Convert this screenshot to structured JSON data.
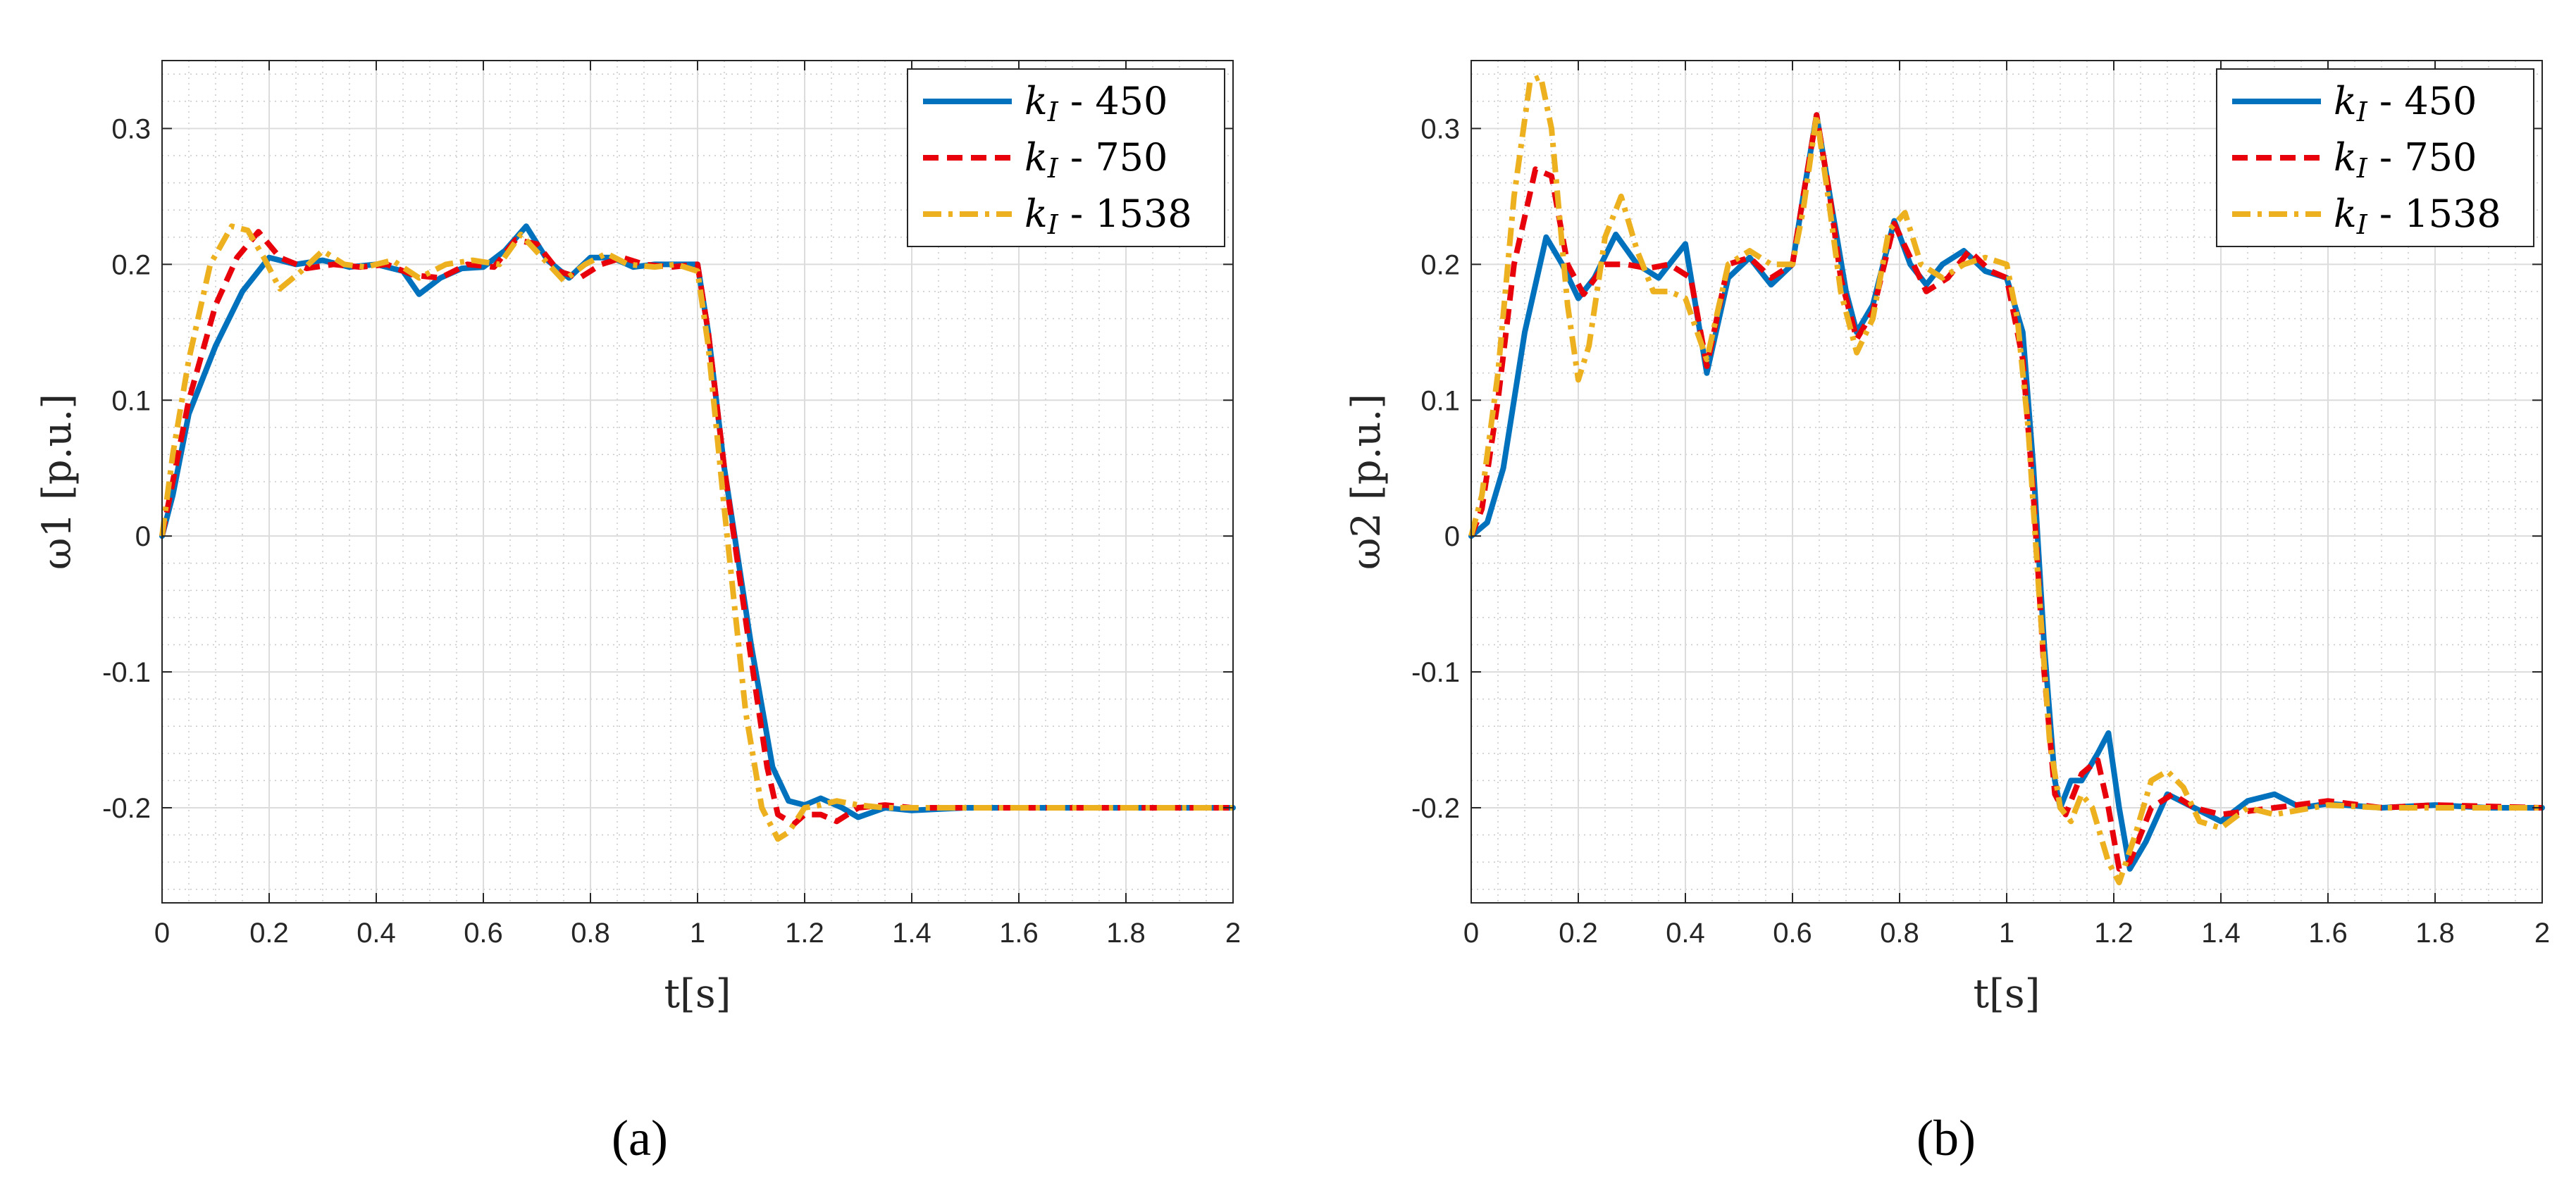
{
  "chart_data": [
    {
      "type": "line",
      "panel_label": "(a)",
      "xlabel": "t[s]",
      "ylabel": "ω1 [p.u.]",
      "xlim": [
        0,
        2
      ],
      "ylim": [
        -0.27,
        0.35
      ],
      "xticks": [
        "0",
        "0.2",
        "0.4",
        "0.6",
        "0.8",
        "1",
        "1.2",
        "1.4",
        "1.6",
        "1.8",
        "2"
      ],
      "yticks": [
        "-0.2",
        "-0.1",
        "0",
        "0.1",
        "0.2",
        "0.3"
      ],
      "grid": true,
      "legend_position": "top-right",
      "series": [
        {
          "name": "k_I - 450",
          "color": "#0072BD",
          "style": "solid",
          "x": [
            0,
            0.02,
            0.05,
            0.1,
            0.15,
            0.2,
            0.25,
            0.3,
            0.35,
            0.4,
            0.45,
            0.48,
            0.52,
            0.56,
            0.6,
            0.64,
            0.68,
            0.72,
            0.76,
            0.8,
            0.84,
            0.88,
            0.92,
            0.96,
            1.0,
            1.02,
            1.05,
            1.1,
            1.14,
            1.17,
            1.2,
            1.23,
            1.27,
            1.3,
            1.35,
            1.4,
            1.5,
            1.6,
            1.8,
            2.0
          ],
          "y": [
            0,
            0.03,
            0.09,
            0.14,
            0.18,
            0.205,
            0.2,
            0.203,
            0.198,
            0.2,
            0.195,
            0.178,
            0.19,
            0.197,
            0.198,
            0.21,
            0.228,
            0.203,
            0.19,
            0.205,
            0.205,
            0.198,
            0.2,
            0.2,
            0.2,
            0.15,
            0.05,
            -0.08,
            -0.17,
            -0.195,
            -0.198,
            -0.193,
            -0.2,
            -0.207,
            -0.2,
            -0.202,
            -0.2,
            -0.2,
            -0.2,
            -0.2
          ]
        },
        {
          "name": "k_I - 750",
          "color": "#E8000B",
          "style": "dashed",
          "x": [
            0,
            0.02,
            0.05,
            0.1,
            0.14,
            0.18,
            0.22,
            0.27,
            0.32,
            0.37,
            0.42,
            0.47,
            0.52,
            0.57,
            0.62,
            0.66,
            0.7,
            0.74,
            0.78,
            0.82,
            0.86,
            0.9,
            0.95,
            1.0,
            1.02,
            1.05,
            1.1,
            1.13,
            1.15,
            1.18,
            1.2,
            1.23,
            1.26,
            1.3,
            1.35,
            1.4,
            1.5,
            1.6,
            1.8,
            2.0
          ],
          "y": [
            0,
            0.04,
            0.1,
            0.17,
            0.205,
            0.224,
            0.205,
            0.197,
            0.2,
            0.198,
            0.2,
            0.192,
            0.19,
            0.2,
            0.198,
            0.218,
            0.215,
            0.195,
            0.19,
            0.2,
            0.205,
            0.2,
            0.198,
            0.2,
            0.15,
            0.05,
            -0.09,
            -0.17,
            -0.205,
            -0.212,
            -0.205,
            -0.205,
            -0.21,
            -0.2,
            -0.198,
            -0.2,
            -0.2,
            -0.2,
            -0.2,
            -0.2
          ]
        },
        {
          "name": "k_I - 1538",
          "color": "#EDB120",
          "style": "dashdot",
          "x": [
            0,
            0.02,
            0.05,
            0.09,
            0.13,
            0.16,
            0.19,
            0.22,
            0.26,
            0.3,
            0.34,
            0.38,
            0.43,
            0.48,
            0.53,
            0.58,
            0.63,
            0.67,
            0.71,
            0.75,
            0.79,
            0.83,
            0.87,
            0.92,
            0.96,
            1.0,
            1.02,
            1.05,
            1.09,
            1.12,
            1.15,
            1.17,
            1.2,
            1.23,
            1.26,
            1.3,
            1.35,
            1.4,
            1.5,
            1.6,
            1.8,
            2.0
          ],
          "y": [
            0,
            0.06,
            0.13,
            0.2,
            0.228,
            0.225,
            0.205,
            0.182,
            0.195,
            0.21,
            0.2,
            0.198,
            0.203,
            0.19,
            0.2,
            0.203,
            0.2,
            0.222,
            0.205,
            0.188,
            0.2,
            0.208,
            0.2,
            0.198,
            0.2,
            0.195,
            0.14,
            0.02,
            -0.13,
            -0.2,
            -0.223,
            -0.218,
            -0.2,
            -0.198,
            -0.195,
            -0.198,
            -0.2,
            -0.2,
            -0.2,
            -0.2,
            -0.2,
            -0.2
          ]
        }
      ]
    },
    {
      "type": "line",
      "panel_label": "(b)",
      "xlabel": "t[s]",
      "ylabel": "ω2 [p.u.]",
      "xlim": [
        0,
        2
      ],
      "ylim": [
        -0.27,
        0.35
      ],
      "xticks": [
        "0",
        "0.2",
        "0.4",
        "0.6",
        "0.8",
        "1",
        "1.2",
        "1.4",
        "1.6",
        "1.8",
        "2"
      ],
      "yticks": [
        "-0.2",
        "-0.1",
        "0",
        "0.1",
        "0.2",
        "0.3"
      ],
      "grid": true,
      "legend_position": "top-right",
      "series": [
        {
          "name": "k_I - 450",
          "color": "#0072BD",
          "style": "solid",
          "x": [
            0,
            0.03,
            0.06,
            0.1,
            0.14,
            0.17,
            0.2,
            0.23,
            0.27,
            0.31,
            0.35,
            0.4,
            0.44,
            0.48,
            0.52,
            0.56,
            0.6,
            0.62,
            0.645,
            0.67,
            0.7,
            0.72,
            0.75,
            0.79,
            0.82,
            0.85,
            0.88,
            0.92,
            0.96,
            1.0,
            1.03,
            1.05,
            1.07,
            1.09,
            1.1,
            1.12,
            1.14,
            1.17,
            1.19,
            1.21,
            1.23,
            1.26,
            1.3,
            1.35,
            1.4,
            1.45,
            1.5,
            1.55,
            1.6,
            1.7,
            1.8,
            1.9,
            2.0
          ],
          "y": [
            0,
            0.01,
            0.05,
            0.15,
            0.22,
            0.2,
            0.175,
            0.19,
            0.222,
            0.2,
            0.19,
            0.215,
            0.12,
            0.19,
            0.205,
            0.185,
            0.2,
            0.25,
            0.31,
            0.25,
            0.18,
            0.15,
            0.17,
            0.232,
            0.2,
            0.185,
            0.2,
            0.21,
            0.195,
            0.19,
            0.15,
            0.05,
            -0.08,
            -0.18,
            -0.2,
            -0.18,
            -0.18,
            -0.16,
            -0.145,
            -0.2,
            -0.245,
            -0.225,
            -0.19,
            -0.2,
            -0.21,
            -0.195,
            -0.19,
            -0.2,
            -0.197,
            -0.2,
            -0.198,
            -0.2,
            -0.2
          ]
        },
        {
          "name": "k_I - 750",
          "color": "#E8000B",
          "style": "dashed",
          "x": [
            0,
            0.02,
            0.05,
            0.08,
            0.12,
            0.15,
            0.18,
            0.21,
            0.25,
            0.29,
            0.33,
            0.37,
            0.41,
            0.44,
            0.48,
            0.52,
            0.56,
            0.6,
            0.62,
            0.645,
            0.67,
            0.69,
            0.72,
            0.75,
            0.79,
            0.82,
            0.85,
            0.89,
            0.93,
            0.97,
            1.0,
            1.03,
            1.05,
            1.07,
            1.09,
            1.11,
            1.14,
            1.17,
            1.19,
            1.21,
            1.23,
            1.27,
            1.31,
            1.35,
            1.4,
            1.5,
            1.6,
            1.7,
            1.8,
            2.0
          ],
          "y": [
            0,
            0.02,
            0.1,
            0.2,
            0.27,
            0.265,
            0.2,
            0.178,
            0.2,
            0.2,
            0.197,
            0.2,
            0.19,
            0.125,
            0.2,
            0.205,
            0.19,
            0.2,
            0.25,
            0.31,
            0.25,
            0.19,
            0.145,
            0.165,
            0.23,
            0.205,
            0.18,
            0.19,
            0.21,
            0.195,
            0.19,
            0.13,
            0.03,
            -0.1,
            -0.19,
            -0.205,
            -0.175,
            -0.165,
            -0.2,
            -0.245,
            -0.24,
            -0.2,
            -0.19,
            -0.2,
            -0.205,
            -0.2,
            -0.195,
            -0.2,
            -0.198,
            -0.2
          ]
        },
        {
          "name": "k_I - 1538",
          "color": "#EDB120",
          "style": "dashdot",
          "x": [
            0,
            0.02,
            0.05,
            0.08,
            0.11,
            0.13,
            0.15,
            0.18,
            0.2,
            0.22,
            0.25,
            0.28,
            0.31,
            0.34,
            0.37,
            0.4,
            0.44,
            0.48,
            0.52,
            0.56,
            0.6,
            0.62,
            0.645,
            0.67,
            0.69,
            0.72,
            0.75,
            0.78,
            0.81,
            0.84,
            0.88,
            0.92,
            0.96,
            1.0,
            1.02,
            1.04,
            1.06,
            1.08,
            1.1,
            1.12,
            1.14,
            1.16,
            1.19,
            1.21,
            1.24,
            1.27,
            1.3,
            1.33,
            1.36,
            1.4,
            1.45,
            1.5,
            1.6,
            1.7,
            1.8,
            1.9,
            2.0
          ],
          "y": [
            0,
            0.03,
            0.12,
            0.25,
            0.335,
            0.338,
            0.3,
            0.17,
            0.115,
            0.14,
            0.22,
            0.25,
            0.21,
            0.18,
            0.18,
            0.175,
            0.13,
            0.2,
            0.21,
            0.2,
            0.2,
            0.24,
            0.31,
            0.24,
            0.18,
            0.135,
            0.16,
            0.225,
            0.238,
            0.2,
            0.19,
            0.2,
            0.205,
            0.2,
            0.16,
            0.08,
            -0.04,
            -0.15,
            -0.2,
            -0.21,
            -0.19,
            -0.2,
            -0.24,
            -0.255,
            -0.22,
            -0.18,
            -0.173,
            -0.185,
            -0.21,
            -0.215,
            -0.2,
            -0.205,
            -0.198,
            -0.2,
            -0.2,
            -0.2,
            -0.2
          ]
        }
      ]
    }
  ]
}
